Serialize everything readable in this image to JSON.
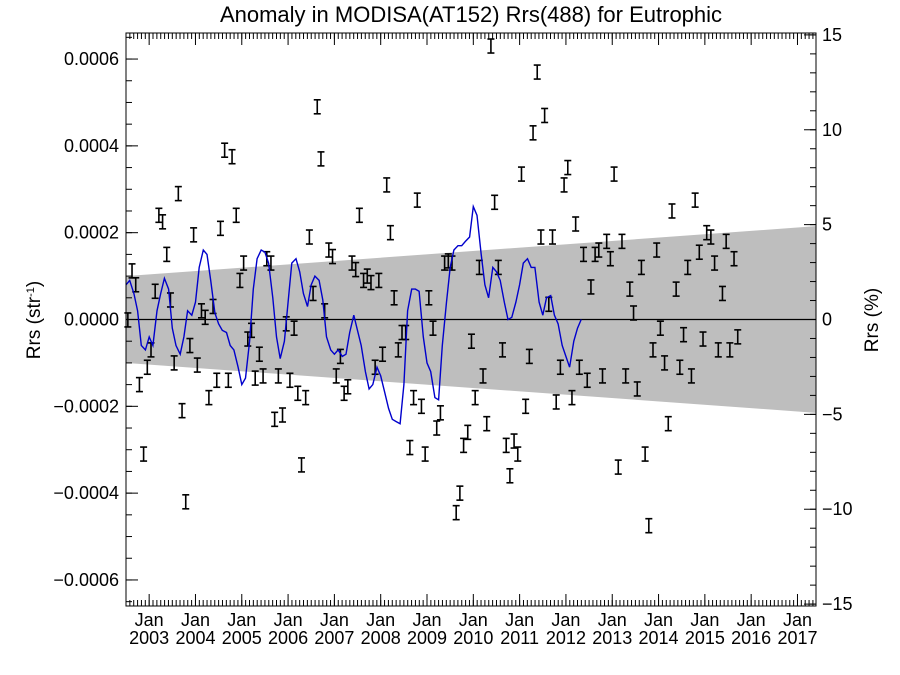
{
  "chart_data": {
    "type": "scatter",
    "title": "Anomaly in MODISA(AT152) Rrs(488) for Eutrophic",
    "ylabel": "Rrs (str",
    "ylabel_sup": "-1",
    "ylabel_close": ")",
    "y2label": "Rrs (%)",
    "xlim": [
      2002.5,
      2017.4
    ],
    "ylim": [
      -0.00066,
      0.00066
    ],
    "y2lim": [
      -15.1,
      15.1
    ],
    "y_ticks": [
      {
        "v": 0.0006,
        "label": "0.0006"
      },
      {
        "v": 0.0004,
        "label": "0.0004"
      },
      {
        "v": 0.0002,
        "label": "0.0002"
      },
      {
        "v": 0.0,
        "label": "0.0000"
      },
      {
        "v": -0.0002,
        "label": "−0.0002"
      },
      {
        "v": -0.0004,
        "label": "−0.0004"
      },
      {
        "v": -0.0006,
        "label": "−0.0006"
      }
    ],
    "y2_ticks": [
      {
        "v": 15,
        "label": "15"
      },
      {
        "v": 10,
        "label": "10"
      },
      {
        "v": 5,
        "label": "5"
      },
      {
        "v": 0,
        "label": "0"
      },
      {
        "v": -5,
        "label": "−5"
      },
      {
        "v": -10,
        "label": "−10"
      },
      {
        "v": -15,
        "label": "−15"
      }
    ],
    "x_ticks": [
      {
        "v": 2003,
        "month": "Jan",
        "year": "2003"
      },
      {
        "v": 2004,
        "month": "Jan",
        "year": "2004"
      },
      {
        "v": 2005,
        "month": "Jan",
        "year": "2005"
      },
      {
        "v": 2006,
        "month": "Jan",
        "year": "2006"
      },
      {
        "v": 2007,
        "month": "Jan",
        "year": "2007"
      },
      {
        "v": 2008,
        "month": "Jan",
        "year": "2008"
      },
      {
        "v": 2009,
        "month": "Jan",
        "year": "2009"
      },
      {
        "v": 2010,
        "month": "Jan",
        "year": "2010"
      },
      {
        "v": 2011,
        "month": "Jan",
        "year": "2011"
      },
      {
        "v": 2012,
        "month": "Jan",
        "year": "2012"
      },
      {
        "v": 2013,
        "month": "Jan",
        "year": "2013"
      },
      {
        "v": 2014,
        "month": "Jan",
        "year": "2014"
      },
      {
        "v": 2015,
        "month": "Jan",
        "year": "2015"
      },
      {
        "v": 2016,
        "month": "Jan",
        "year": "2016"
      },
      {
        "v": 2017,
        "month": "Jan",
        "year": "2017"
      }
    ],
    "band": {
      "x": [
        2002.5,
        2017.4
      ],
      "upper": [
        0.0001,
        0.000215
      ],
      "lower": [
        -0.0001,
        -0.000215
      ]
    },
    "grid": false,
    "colors": {
      "points": "#000000",
      "smooth": "#0000cc",
      "band": "#bebebe",
      "zero": "#000000"
    },
    "points": [
      [
        2002.54,
        -1e-06
      ],
      [
        2002.63,
        0.000112
      ],
      [
        2002.71,
        8e-05
      ],
      [
        2002.79,
        -0.00015
      ],
      [
        2002.88,
        -0.00031
      ],
      [
        2002.96,
        -0.00011
      ],
      [
        2003.04,
        -7e-05
      ],
      [
        2003.13,
        6.5e-05
      ],
      [
        2003.21,
        0.00024
      ],
      [
        2003.29,
        0.000225
      ],
      [
        2003.38,
        0.00015
      ],
      [
        2003.46,
        4.5e-05
      ],
      [
        2003.54,
        -0.0001
      ],
      [
        2003.63,
        0.00029
      ],
      [
        2003.71,
        -0.00021
      ],
      [
        2003.79,
        -0.00042
      ],
      [
        2003.88,
        -6e-05
      ],
      [
        2003.96,
        0.000195
      ],
      [
        2004.04,
        -0.000105
      ],
      [
        2004.13,
        2e-05
      ],
      [
        2004.21,
        5e-06
      ],
      [
        2004.29,
        -0.00018
      ],
      [
        2004.38,
        3e-05
      ],
      [
        2004.46,
        -0.00014
      ],
      [
        2004.54,
        0.00021
      ],
      [
        2004.63,
        0.00039
      ],
      [
        2004.71,
        -0.00014
      ],
      [
        2004.79,
        0.000375
      ],
      [
        2004.88,
        0.00024
      ],
      [
        2004.96,
        9e-05
      ],
      [
        2005.04,
        0.00013
      ],
      [
        2005.13,
        -4.5e-05
      ],
      [
        2005.21,
        -2.5e-05
      ],
      [
        2005.29,
        -0.000135
      ],
      [
        2005.38,
        -8e-05
      ],
      [
        2005.46,
        -0.00013
      ],
      [
        2005.54,
        0.00014
      ],
      [
        2005.63,
        0.00013
      ],
      [
        2005.71,
        -0.00023
      ],
      [
        2005.79,
        -0.00013
      ],
      [
        2005.88,
        -0.00022
      ],
      [
        2005.96,
        -1e-05
      ],
      [
        2006.04,
        -0.00014
      ],
      [
        2006.13,
        -2e-05
      ],
      [
        2006.21,
        -0.00017
      ],
      [
        2006.29,
        -0.000335
      ],
      [
        2006.38,
        -0.00018
      ],
      [
        2006.46,
        0.00019
      ],
      [
        2006.54,
        6e-05
      ],
      [
        2006.63,
        0.00049
      ],
      [
        2006.71,
        0.00037
      ],
      [
        2006.79,
        2e-05
      ],
      [
        2006.88,
        0.00016
      ],
      [
        2006.96,
        0.000145
      ],
      [
        2007.04,
        -0.00013
      ],
      [
        2007.13,
        -8.5e-05
      ],
      [
        2007.21,
        -0.00017
      ],
      [
        2007.29,
        -0.000155
      ],
      [
        2007.38,
        0.00013
      ],
      [
        2007.46,
        0.000115
      ],
      [
        2007.54,
        0.00024
      ],
      [
        2007.63,
        9e-05
      ],
      [
        2007.71,
        0.0001
      ],
      [
        2007.79,
        8.5e-05
      ],
      [
        2007.88,
        -0.00011
      ],
      [
        2007.96,
        9e-05
      ],
      [
        2008.04,
        -8e-05
      ],
      [
        2008.13,
        0.00031
      ],
      [
        2008.21,
        0.0002
      ],
      [
        2008.29,
        5e-05
      ],
      [
        2008.38,
        -7e-05
      ],
      [
        2008.46,
        -3e-05
      ],
      [
        2008.54,
        -3e-05
      ],
      [
        2008.63,
        -0.000295
      ],
      [
        2008.71,
        -0.00018
      ],
      [
        2008.79,
        0.000275
      ],
      [
        2008.88,
        -0.0002
      ],
      [
        2008.96,
        -0.00031
      ],
      [
        2009.04,
        5e-05
      ],
      [
        2009.13,
        -2e-05
      ],
      [
        2009.21,
        -0.00025
      ],
      [
        2009.29,
        -0.000215
      ],
      [
        2009.38,
        0.00013
      ],
      [
        2009.46,
        0.000135
      ],
      [
        2009.54,
        0.00013
      ],
      [
        2009.63,
        -0.000445
      ],
      [
        2009.71,
        -0.0004
      ],
      [
        2009.79,
        -0.00029
      ],
      [
        2009.88,
        -0.00026
      ],
      [
        2009.96,
        -5e-05
      ],
      [
        2010.04,
        -0.00018
      ],
      [
        2010.13,
        0.00012
      ],
      [
        2010.21,
        -0.00013
      ],
      [
        2010.29,
        -0.00024
      ],
      [
        2010.38,
        0.00063
      ],
      [
        2010.46,
        0.00027
      ],
      [
        2010.54,
        0.00012
      ],
      [
        2010.63,
        -7e-05
      ],
      [
        2010.71,
        -0.00029
      ],
      [
        2010.79,
        -0.00036
      ],
      [
        2010.88,
        -0.00028
      ],
      [
        2010.96,
        -0.00031
      ],
      [
        2011.04,
        0.000335
      ],
      [
        2011.13,
        -0.0002
      ],
      [
        2011.21,
        -8.5e-05
      ],
      [
        2011.29,
        0.00043
      ],
      [
        2011.38,
        0.00057
      ],
      [
        2011.46,
        0.00019
      ],
      [
        2011.54,
        0.00047
      ],
      [
        2011.63,
        3.5e-05
      ],
      [
        2011.71,
        0.00019
      ],
      [
        2011.79,
        -0.00019
      ],
      [
        2011.88,
        -0.00011
      ],
      [
        2011.96,
        0.00031
      ],
      [
        2012.04,
        0.00035
      ],
      [
        2012.13,
        -0.00018
      ],
      [
        2012.21,
        0.00022
      ],
      [
        2012.29,
        -0.00011
      ],
      [
        2012.38,
        0.00015
      ],
      [
        2012.46,
        -0.00014
      ],
      [
        2012.54,
        7.5e-05
      ],
      [
        2012.63,
        0.00015
      ],
      [
        2012.71,
        0.00016
      ],
      [
        2012.79,
        -0.00013
      ],
      [
        2012.88,
        0.00018
      ],
      [
        2012.96,
        0.00014
      ],
      [
        2013.04,
        0.000335
      ],
      [
        2013.13,
        -0.00034
      ],
      [
        2013.21,
        0.00018
      ],
      [
        2013.29,
        -0.00013
      ],
      [
        2013.38,
        7e-05
      ],
      [
        2013.46,
        1.5e-05
      ],
      [
        2013.54,
        -0.00016
      ],
      [
        2013.63,
        0.00012
      ],
      [
        2013.71,
        -0.00031
      ],
      [
        2013.79,
        -0.000475
      ],
      [
        2013.88,
        -7e-05
      ],
      [
        2013.96,
        0.00016
      ],
      [
        2014.04,
        -2e-05
      ],
      [
        2014.13,
        -0.0001
      ],
      [
        2014.21,
        -0.00024
      ],
      [
        2014.29,
        0.00025
      ],
      [
        2014.38,
        7e-05
      ],
      [
        2014.46,
        -0.00011
      ],
      [
        2014.54,
        -3.5e-05
      ],
      [
        2014.63,
        0.00012
      ],
      [
        2014.71,
        -0.00013
      ],
      [
        2014.79,
        0.000275
      ],
      [
        2014.88,
        0.000155
      ],
      [
        2014.96,
        -4.5e-05
      ],
      [
        2015.04,
        0.0002
      ],
      [
        2015.13,
        0.00019
      ],
      [
        2015.21,
        0.00013
      ],
      [
        2015.29,
        -7e-05
      ],
      [
        2015.38,
        6e-05
      ],
      [
        2015.46,
        0.00018
      ],
      [
        2015.54,
        -7e-05
      ],
      [
        2015.63,
        0.00014
      ],
      [
        2015.71,
        -4e-05
      ]
    ],
    "smooth": [
      [
        2002.5,
        8e-05
      ],
      [
        2002.58,
        9e-05
      ],
      [
        2002.67,
        6e-05
      ],
      [
        2002.75,
        2e-05
      ],
      [
        2002.83,
        -6e-05
      ],
      [
        2002.92,
        -7e-05
      ],
      [
        2003.0,
        -4e-05
      ],
      [
        2003.08,
        -6e-05
      ],
      [
        2003.17,
        2e-05
      ],
      [
        2003.25,
        6e-05
      ],
      [
        2003.33,
        9.5e-05
      ],
      [
        2003.42,
        7e-05
      ],
      [
        2003.5,
        -2e-05
      ],
      [
        2003.58,
        -6e-05
      ],
      [
        2003.67,
        -8e-05
      ],
      [
        2003.75,
        -4e-05
      ],
      [
        2003.83,
        2e-05
      ],
      [
        2003.92,
        1e-05
      ],
      [
        2004.0,
        4e-05
      ],
      [
        2004.08,
        0.00012
      ],
      [
        2004.17,
        0.00016
      ],
      [
        2004.25,
        0.00015
      ],
      [
        2004.33,
        9e-05
      ],
      [
        2004.42,
        1.5e-05
      ],
      [
        2004.5,
        -1e-05
      ],
      [
        2004.58,
        -2.5e-05
      ],
      [
        2004.67,
        -3e-05
      ],
      [
        2004.75,
        -6e-05
      ],
      [
        2004.83,
        -7e-05
      ],
      [
        2004.92,
        -0.00011
      ],
      [
        2005.0,
        -0.00015
      ],
      [
        2005.08,
        -0.000135
      ],
      [
        2005.17,
        -5e-05
      ],
      [
        2005.25,
        7e-05
      ],
      [
        2005.33,
        0.00014
      ],
      [
        2005.42,
        0.00016
      ],
      [
        2005.5,
        0.000155
      ],
      [
        2005.58,
        0.00013
      ],
      [
        2005.67,
        5e-05
      ],
      [
        2005.75,
        -4e-05
      ],
      [
        2005.83,
        -9e-05
      ],
      [
        2005.92,
        -5e-05
      ],
      [
        2006.0,
        4e-05
      ],
      [
        2006.08,
        0.00013
      ],
      [
        2006.17,
        0.00014
      ],
      [
        2006.25,
        0.00011
      ],
      [
        2006.33,
        6e-05
      ],
      [
        2006.42,
        3e-05
      ],
      [
        2006.5,
        8e-05
      ],
      [
        2006.58,
        0.0001
      ],
      [
        2006.67,
        9e-05
      ],
      [
        2006.75,
        4.5e-05
      ],
      [
        2006.83,
        -4e-05
      ],
      [
        2006.92,
        -7e-05
      ],
      [
        2007.0,
        -8e-05
      ],
      [
        2007.08,
        -7e-05
      ],
      [
        2007.17,
        -8.5e-05
      ],
      [
        2007.25,
        -8e-05
      ],
      [
        2007.33,
        -3e-05
      ],
      [
        2007.42,
        1e-05
      ],
      [
        2007.5,
        -2.5e-05
      ],
      [
        2007.58,
        -6e-05
      ],
      [
        2007.67,
        -0.00012
      ],
      [
        2007.75,
        -0.00016
      ],
      [
        2007.83,
        -0.00015
      ],
      [
        2007.92,
        -0.00011
      ],
      [
        2008.0,
        -0.00013
      ],
      [
        2008.08,
        -0.000165
      ],
      [
        2008.17,
        -0.000205
      ],
      [
        2008.25,
        -0.00023
      ],
      [
        2008.33,
        -0.000235
      ],
      [
        2008.42,
        -0.00024
      ],
      [
        2008.5,
        -0.00015
      ],
      [
        2008.58,
        2e-05
      ],
      [
        2008.67,
        7e-05
      ],
      [
        2008.75,
        7e-05
      ],
      [
        2008.83,
        6.5e-05
      ],
      [
        2008.92,
        -4e-05
      ],
      [
        2009.0,
        -0.0001
      ],
      [
        2009.08,
        -0.00012
      ],
      [
        2009.17,
        -0.00018
      ],
      [
        2009.25,
        -0.000185
      ],
      [
        2009.33,
        -6e-05
      ],
      [
        2009.42,
        4e-05
      ],
      [
        2009.5,
        0.00012
      ],
      [
        2009.58,
        0.00016
      ],
      [
        2009.67,
        0.00017
      ],
      [
        2009.75,
        0.00017
      ],
      [
        2009.83,
        0.00018
      ],
      [
        2009.92,
        0.00019
      ],
      [
        2010.0,
        0.00026
      ],
      [
        2010.08,
        0.00024
      ],
      [
        2010.17,
        0.00015
      ],
      [
        2010.25,
        8e-05
      ],
      [
        2010.33,
        5e-05
      ],
      [
        2010.42,
        0.00012
      ],
      [
        2010.5,
        0.00011
      ],
      [
        2010.58,
        9e-05
      ],
      [
        2010.67,
        4e-05
      ],
      [
        2010.75,
        0.0
      ],
      [
        2010.83,
        5e-06
      ],
      [
        2010.92,
        4e-05
      ],
      [
        2011.0,
        8e-05
      ],
      [
        2011.08,
        0.00013
      ],
      [
        2011.17,
        0.00014
      ],
      [
        2011.25,
        0.00012
      ],
      [
        2011.33,
        0.00012
      ],
      [
        2011.42,
        4e-05
      ],
      [
        2011.5,
        1e-05
      ],
      [
        2011.58,
        5e-05
      ],
      [
        2011.67,
        5.5e-05
      ],
      [
        2011.75,
        1e-05
      ],
      [
        2011.83,
        -1e-05
      ],
      [
        2011.92,
        -6e-05
      ],
      [
        2012.0,
        -8.5e-05
      ],
      [
        2012.08,
        -0.00011
      ],
      [
        2012.17,
        -5e-05
      ],
      [
        2012.25,
        -2e-05
      ],
      [
        2012.33,
        0.0
      ]
    ]
  }
}
